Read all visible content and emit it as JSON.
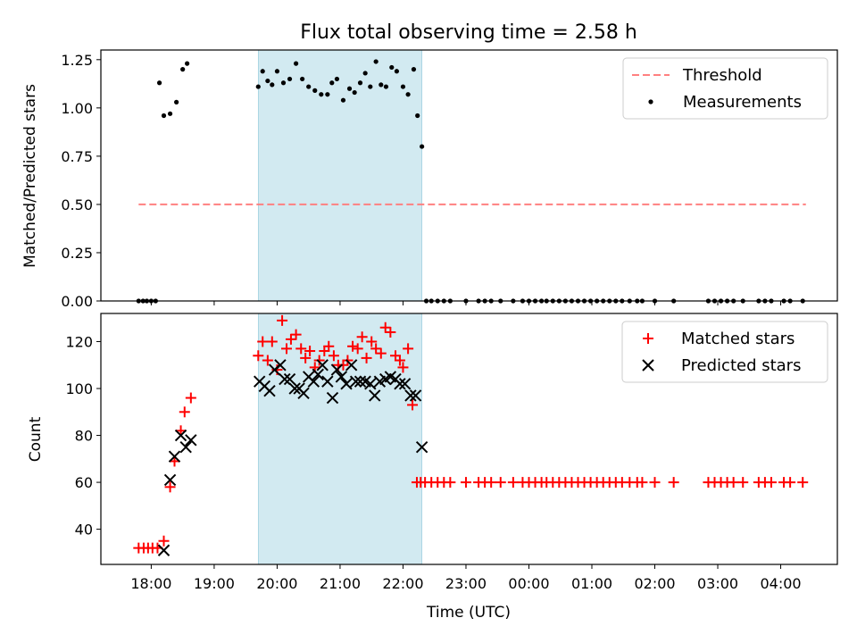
{
  "chart_data": [
    {
      "type": "scatter",
      "title": "Flux total observing time = 2.58 h",
      "xlabel": "",
      "ylabel": "Matched/Predicted stars",
      "xlim": [
        17.2,
        28.9
      ],
      "ylim": [
        0,
        1.3
      ],
      "yticks": [
        0,
        0.25,
        0.5,
        0.75,
        1.0,
        1.25
      ],
      "ytick_labels": [
        "0.00",
        "0.25",
        "0.50",
        "0.75",
        "1.00",
        "1.25"
      ],
      "shaded_interval": [
        19.7,
        22.3
      ],
      "legend_position": "top-right",
      "legend": [
        "Threshold",
        "Measurements"
      ],
      "threshold": {
        "name": "Threshold",
        "y": 0.5,
        "x": [
          17.8,
          28.4
        ],
        "color": "#ff8080"
      },
      "measurements": {
        "name": "Measurements",
        "color": "#000000",
        "x": [
          17.8,
          17.87,
          17.93,
          18.0,
          18.07,
          18.13,
          18.2,
          18.3,
          18.4,
          18.5,
          18.57,
          18.63,
          19.7,
          19.77,
          19.85,
          19.92,
          20.0,
          20.1,
          20.2,
          20.3,
          20.4,
          20.5,
          20.6,
          20.7,
          20.8,
          20.87,
          20.95,
          21.05,
          21.15,
          21.23,
          21.32,
          21.4,
          21.48,
          21.57,
          21.65,
          21.73,
          21.82,
          21.9,
          22.0,
          22.08,
          22.17,
          22.23,
          22.3,
          22.37,
          22.45,
          22.55,
          22.65,
          22.75,
          23.0,
          23.2,
          23.3,
          23.4,
          23.55,
          23.75,
          23.9,
          24.0,
          24.1,
          24.2,
          24.28,
          24.38,
          24.48,
          24.58,
          24.68,
          24.78,
          24.88,
          24.98,
          25.08,
          25.18,
          25.28,
          25.38,
          25.48,
          25.6,
          25.72,
          25.8,
          26.0,
          26.3,
          26.85,
          26.95,
          27.05,
          27.15,
          27.25,
          27.4,
          27.65,
          27.75,
          27.85,
          28.05,
          28.15,
          28.35
        ],
        "y": [
          0,
          0,
          0,
          0,
          0,
          1.13,
          0.96,
          0.97,
          1.03,
          1.2,
          1.23,
          null,
          1.11,
          1.19,
          1.14,
          1.12,
          1.19,
          1.13,
          1.15,
          1.23,
          1.15,
          1.11,
          1.09,
          1.07,
          1.07,
          1.13,
          1.15,
          1.04,
          1.1,
          1.08,
          1.13,
          1.18,
          1.11,
          1.24,
          1.12,
          1.11,
          1.21,
          1.19,
          1.11,
          1.07,
          1.2,
          0.96,
          0.8,
          0,
          0,
          0,
          0,
          0,
          0,
          0,
          0,
          0,
          0,
          0,
          0,
          0,
          0,
          0,
          0,
          0,
          0,
          0,
          0,
          0,
          0,
          0,
          0,
          0,
          0,
          0,
          0,
          0,
          0,
          0,
          0,
          0,
          0,
          0,
          0,
          0,
          0,
          0,
          0,
          0,
          0,
          0,
          0,
          0
        ]
      }
    },
    {
      "type": "scatter",
      "title": "",
      "xlabel": "Time (UTC)",
      "ylabel": "Count",
      "xlim": [
        17.2,
        28.9
      ],
      "ylim": [
        25,
        132
      ],
      "yticks": [
        40,
        60,
        80,
        100,
        120
      ],
      "ytick_labels": [
        "40",
        "60",
        "80",
        "100",
        "120"
      ],
      "xticks": [
        18,
        19,
        20,
        21,
        22,
        23,
        24,
        25,
        26,
        27,
        28
      ],
      "xtick_labels": [
        "18:00",
        "19:00",
        "20:00",
        "21:00",
        "22:00",
        "23:00",
        "00:00",
        "01:00",
        "02:00",
        "03:00",
        "04:00"
      ],
      "shaded_interval": [
        19.7,
        22.3
      ],
      "legend_position": "top-right",
      "legend": [
        "Matched stars",
        "Predicted stars"
      ],
      "series": [
        {
          "name": "Matched stars",
          "marker": "+",
          "color": "#ff0000",
          "x": [
            17.8,
            17.88,
            17.95,
            18.02,
            18.1,
            18.2,
            18.3,
            18.37,
            18.47,
            18.53,
            18.63,
            19.7,
            19.77,
            19.85,
            19.92,
            20.0,
            20.08,
            20.15,
            20.22,
            20.3,
            20.38,
            20.45,
            20.52,
            20.6,
            20.67,
            20.75,
            20.82,
            20.9,
            20.97,
            21.05,
            21.12,
            21.2,
            21.28,
            21.35,
            21.42,
            21.5,
            21.57,
            21.65,
            21.72,
            21.8,
            21.88,
            21.95,
            22.0,
            22.08,
            22.15,
            22.22,
            22.28,
            22.35,
            22.45,
            22.55,
            22.65,
            22.75,
            23.0,
            23.2,
            23.3,
            23.4,
            23.55,
            23.75,
            23.9,
            24.0,
            24.1,
            24.2,
            24.28,
            24.38,
            24.48,
            24.58,
            24.68,
            24.78,
            24.88,
            24.98,
            25.08,
            25.18,
            25.28,
            25.38,
            25.48,
            25.6,
            25.72,
            25.8,
            26.0,
            26.3,
            26.85,
            26.95,
            27.05,
            27.15,
            27.25,
            27.4,
            27.65,
            27.75,
            27.85,
            28.05,
            28.15,
            28.35
          ],
          "y": [
            32,
            32,
            32,
            32,
            32,
            35,
            58,
            69,
            82,
            90,
            96,
            114,
            120,
            112,
            120,
            108,
            129,
            117,
            121,
            123,
            117,
            113,
            116,
            109,
            112,
            116,
            118,
            114,
            110,
            110,
            112,
            118,
            117,
            122,
            113,
            120,
            117,
            115,
            126,
            124,
            114,
            112,
            109,
            117,
            93,
            60,
            60,
            60,
            60,
            60,
            60,
            60,
            60,
            60,
            60,
            60,
            60,
            60,
            60,
            60,
            60,
            60,
            60,
            60,
            60,
            60,
            60,
            60,
            60,
            60,
            60,
            60,
            60,
            60,
            60,
            60,
            60,
            60,
            60,
            60,
            60,
            60,
            60,
            60,
            60,
            60,
            60,
            60,
            60,
            60,
            60,
            60
          ]
        },
        {
          "name": "Predicted stars",
          "marker": "x",
          "color": "#000000",
          "x": [
            18.2,
            18.3,
            18.37,
            18.47,
            18.55,
            18.63,
            19.72,
            19.8,
            19.88,
            19.96,
            20.05,
            20.12,
            20.2,
            20.28,
            20.35,
            20.42,
            20.5,
            20.58,
            20.65,
            20.72,
            20.8,
            20.88,
            20.95,
            21.02,
            21.1,
            21.18,
            21.25,
            21.32,
            21.4,
            21.48,
            21.55,
            21.63,
            21.72,
            21.8,
            21.88,
            21.95,
            22.03,
            22.12,
            22.2,
            22.3
          ],
          "y": [
            31,
            61,
            71,
            80,
            75,
            78,
            103,
            101,
            99,
            108,
            110,
            104,
            104,
            100,
            100,
            98,
            105,
            103,
            106,
            110,
            103,
            96,
            108,
            105,
            102,
            110,
            103,
            103,
            103,
            102,
            97,
            103,
            104,
            105,
            104,
            102,
            102,
            97,
            97,
            75
          ]
        }
      ]
    }
  ]
}
